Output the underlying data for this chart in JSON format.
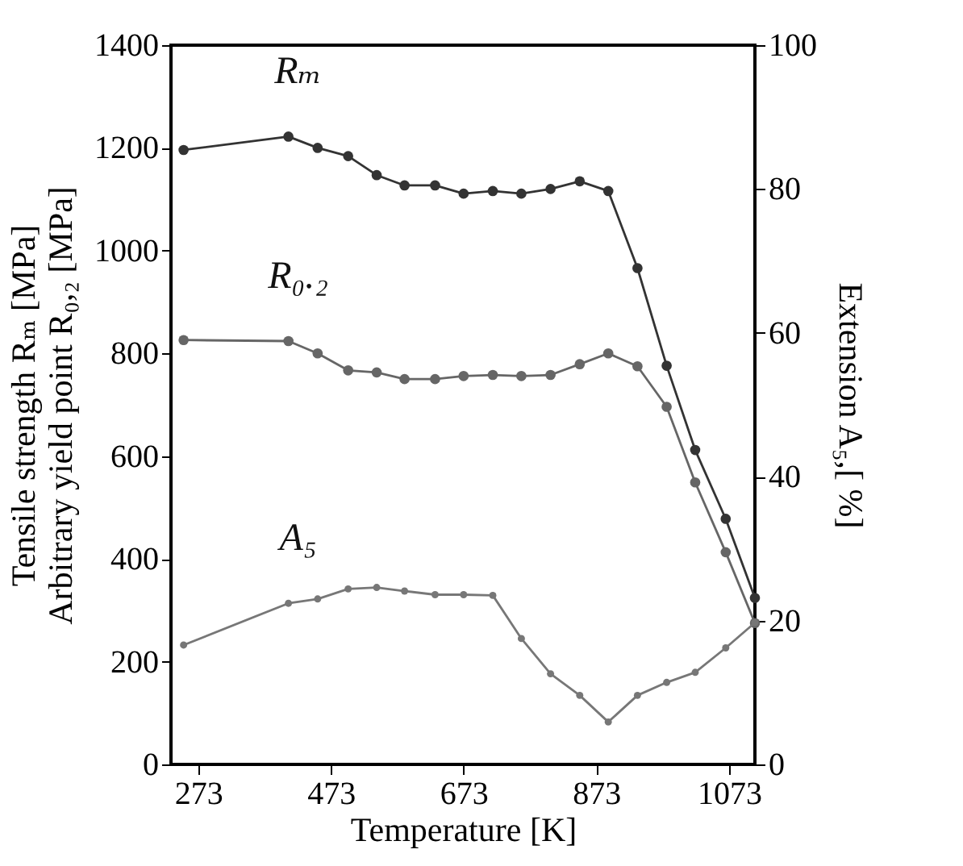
{
  "chart_data": {
    "type": "line",
    "xlabel": "Temperature [K]",
    "ylabel": "Tensile strength Rₘ [MPa]\nArbitrary yield point R₀,₂ [MPa]",
    "y2label": "Extension A₅,[ %]",
    "x": [
      251,
      409,
      453,
      499,
      542,
      584,
      630,
      673,
      717,
      760,
      804,
      848,
      891,
      935,
      979,
      1022,
      1068,
      1112
    ],
    "xlim": [
      232,
      1112
    ],
    "xticks": [
      273,
      473,
      673,
      873,
      1073
    ],
    "ylim": [
      0,
      1400
    ],
    "yticks": [
      0,
      200,
      400,
      600,
      800,
      1000,
      1200,
      1400
    ],
    "y2lim": [
      0,
      100
    ],
    "y2ticks": [
      0,
      20,
      40,
      60,
      80,
      100
    ],
    "grid": false,
    "legend": false,
    "marker": "circle",
    "line_style": "solid",
    "series": [
      {
        "name": "Rₘ",
        "color": "#333333",
        "values": [
          1196,
          1222,
          1200,
          1184,
          1147,
          1127,
          1127,
          1111,
          1116,
          1111,
          1120,
          1135,
          1116,
          966,
          776,
          612,
          478,
          324
        ]
      },
      {
        "name": "R₀.₂",
        "color": "#666666",
        "values": [
          826,
          824,
          800,
          767,
          763,
          750,
          750,
          756,
          758,
          756,
          758,
          779,
          800,
          775,
          696,
          549,
          413,
          275
        ]
      },
      {
        "name": "A₅",
        "color": "#777777",
        "axis": "y2",
        "values": [
          16.6,
          22.4,
          23.0,
          24.4,
          24.6,
          24.1,
          23.6,
          23.6,
          23.5,
          17.5,
          12.6,
          9.6,
          5.9,
          9.6,
          11.4,
          12.8,
          16.2,
          19.7
        ]
      }
    ]
  }
}
